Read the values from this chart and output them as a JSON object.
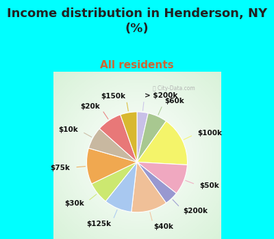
{
  "title": "Income distribution in Henderson, NY\n(%)",
  "subtitle": "All residents",
  "bg_color": "#00FFFF",
  "chart_bg_color": "#e8f5f0",
  "labels": [
    "> $200k",
    "$60k",
    "$100k",
    "$50k",
    "$200k",
    "$40k",
    "$125k",
    "$30k",
    "$75k",
    "$10k",
    "$20k",
    "$150k"
  ],
  "sizes": [
    4,
    7,
    18,
    11,
    5,
    13,
    10,
    8,
    13,
    8,
    9,
    6
  ],
  "colors": [
    "#c8c0e8",
    "#a8c890",
    "#f4f46a",
    "#f0a8c0",
    "#9898d0",
    "#f0c098",
    "#a8c8f0",
    "#cce870",
    "#f0a850",
    "#c8b8a0",
    "#e87878",
    "#d8b830"
  ],
  "title_fontsize": 13,
  "subtitle_fontsize": 11,
  "subtitle_color": "#cc6633",
  "label_fontsize": 7.5
}
